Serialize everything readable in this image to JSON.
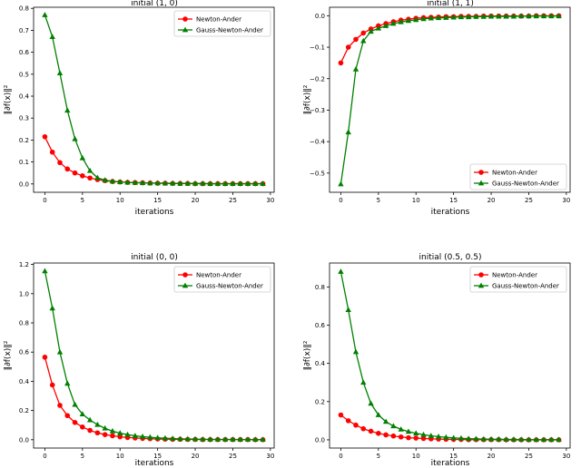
{
  "chart_data": [
    {
      "type": "line",
      "title": "initial (1, 0)",
      "xlabel": "iterations",
      "ylabel": "‖∂f(x)‖²",
      "xlim": [
        -1.5,
        30.5
      ],
      "ylim": [
        -0.038,
        0.805
      ],
      "xticks": [
        0,
        5,
        10,
        15,
        20,
        25,
        30
      ],
      "xtick_labels": [
        "0",
        "5",
        "10",
        "15",
        "20",
        "25",
        "30"
      ],
      "yticks": [
        0.0,
        0.1,
        0.2,
        0.3,
        0.4,
        0.5,
        0.6,
        0.7,
        0.8
      ],
      "ytick_labels": [
        "0.0",
        "0.1",
        "0.2",
        "0.3",
        "0.4",
        "0.5",
        "0.6",
        "0.7",
        "0.8"
      ],
      "legend": "top-right",
      "series": [
        {
          "name": "Newton-Ander",
          "color": "#ff0000",
          "marker": "circle",
          "x": [
            0,
            1,
            2,
            3,
            4,
            5,
            6,
            7,
            8,
            9,
            10,
            11,
            12,
            13,
            14,
            15,
            16,
            17,
            18,
            19,
            20,
            21,
            22,
            23,
            24,
            25,
            26,
            27,
            28,
            29
          ],
          "values": [
            0.215,
            0.145,
            0.097,
            0.068,
            0.05,
            0.037,
            0.027,
            0.02,
            0.015,
            0.011,
            0.009,
            0.007,
            0.006,
            0.005,
            0.004,
            0.003,
            0.003,
            0.002,
            0.002,
            0.002,
            0.001,
            0.001,
            0.001,
            0.001,
            0.001,
            0.001,
            0.001,
            0.001,
            0.001,
            0.001
          ]
        },
        {
          "name": "Gauss-Newton-Ander",
          "color": "#008000",
          "marker": "triangle",
          "x": [
            0,
            1,
            2,
            3,
            4,
            5,
            6,
            7,
            8,
            9,
            10,
            11,
            12,
            13,
            14,
            15,
            16,
            17,
            18,
            19,
            20,
            21,
            22,
            23,
            24,
            25,
            26,
            27,
            28,
            29
          ],
          "values": [
            0.77,
            0.67,
            0.505,
            0.335,
            0.205,
            0.118,
            0.06,
            0.028,
            0.017,
            0.012,
            0.009,
            0.007,
            0.006,
            0.005,
            0.004,
            0.004,
            0.003,
            0.003,
            0.002,
            0.002,
            0.002,
            0.002,
            0.001,
            0.001,
            0.001,
            0.001,
            0.001,
            0.001,
            0.001,
            0.001
          ]
        }
      ]
    },
    {
      "type": "line",
      "title": "initial (1, 1)",
      "xlabel": "iterations",
      "ylabel": "‖∂f(x)‖²",
      "xlim": [
        -1.5,
        30.5
      ],
      "ylim": [
        -0.561,
        0.027
      ],
      "xticks": [
        0,
        5,
        10,
        15,
        20,
        25,
        30
      ],
      "xtick_labels": [
        "0",
        "5",
        "10",
        "15",
        "20",
        "25",
        "30"
      ],
      "yticks": [
        0.0,
        -0.1,
        -0.2,
        -0.3,
        -0.4,
        -0.5
      ],
      "ytick_labels": [
        "0.0",
        "−0.1",
        "−0.2",
        "−0.3",
        "−0.4",
        "−0.5"
      ],
      "legend": "bottom-right",
      "series": [
        {
          "name": "Newton-Ander",
          "color": "#ff0000",
          "marker": "circle",
          "x": [
            0,
            1,
            2,
            3,
            4,
            5,
            6,
            7,
            8,
            9,
            10,
            11,
            12,
            13,
            14,
            15,
            16,
            17,
            18,
            19,
            20,
            21,
            22,
            23,
            24,
            25,
            26,
            27,
            28,
            29
          ],
          "values": [
            -0.15,
            -0.1,
            -0.075,
            -0.055,
            -0.042,
            -0.032,
            -0.025,
            -0.019,
            -0.014,
            -0.011,
            -0.008,
            -0.006,
            -0.005,
            -0.004,
            -0.003,
            -0.003,
            -0.002,
            -0.002,
            -0.002,
            -0.001,
            -0.001,
            -0.001,
            -0.001,
            -0.001,
            -0.001,
            -0.001,
            0.0,
            0.0,
            0.0,
            0.0
          ]
        },
        {
          "name": "Gauss-Newton-Ander",
          "color": "#008000",
          "marker": "triangle",
          "x": [
            0,
            1,
            2,
            3,
            4,
            5,
            6,
            7,
            8,
            9,
            10,
            11,
            12,
            13,
            14,
            15,
            16,
            17,
            18,
            19,
            20,
            21,
            22,
            23,
            24,
            25,
            26,
            27,
            28,
            29
          ],
          "values": [
            -0.535,
            -0.37,
            -0.17,
            -0.08,
            -0.05,
            -0.04,
            -0.032,
            -0.025,
            -0.02,
            -0.016,
            -0.013,
            -0.01,
            -0.008,
            -0.007,
            -0.006,
            -0.005,
            -0.004,
            -0.004,
            -0.003,
            -0.003,
            -0.002,
            -0.002,
            -0.002,
            -0.002,
            -0.001,
            -0.001,
            -0.001,
            -0.001,
            -0.001,
            -0.001
          ]
        }
      ]
    },
    {
      "type": "line",
      "title": "initial (0, 0)",
      "xlabel": "iterations",
      "ylabel": "‖∂f(x)‖²",
      "xlim": [
        -1.5,
        30.5
      ],
      "ylim": [
        -0.057,
        1.21
      ],
      "xticks": [
        0,
        5,
        10,
        15,
        20,
        25,
        30
      ],
      "xtick_labels": [
        "0",
        "5",
        "10",
        "15",
        "20",
        "25",
        "30"
      ],
      "yticks": [
        0.0,
        0.2,
        0.4,
        0.6,
        0.8,
        1.0,
        1.2
      ],
      "ytick_labels": [
        "0.0",
        "0.2",
        "0.4",
        "0.6",
        "0.8",
        "1.0",
        "1.2"
      ],
      "legend": "top-right",
      "series": [
        {
          "name": "Newton-Ander",
          "color": "#ff0000",
          "marker": "circle",
          "x": [
            0,
            1,
            2,
            3,
            4,
            5,
            6,
            7,
            8,
            9,
            10,
            11,
            12,
            13,
            14,
            15,
            16,
            17,
            18,
            19,
            20,
            21,
            22,
            23,
            24,
            25,
            26,
            27,
            28,
            29
          ],
          "values": [
            0.565,
            0.375,
            0.235,
            0.165,
            0.118,
            0.087,
            0.064,
            0.047,
            0.035,
            0.027,
            0.02,
            0.015,
            0.012,
            0.009,
            0.007,
            0.005,
            0.004,
            0.003,
            0.003,
            0.002,
            0.002,
            0.001,
            0.001,
            0.001,
            0.001,
            0.001,
            0.001,
            0.001,
            0.0,
            0.0
          ]
        },
        {
          "name": "Gauss-Newton-Ander",
          "color": "#008000",
          "marker": "triangle",
          "x": [
            0,
            1,
            2,
            3,
            4,
            5,
            6,
            7,
            8,
            9,
            10,
            11,
            12,
            13,
            14,
            15,
            16,
            17,
            18,
            19,
            20,
            21,
            22,
            23,
            24,
            25,
            26,
            27,
            28,
            29
          ],
          "values": [
            1.155,
            0.9,
            0.6,
            0.385,
            0.24,
            0.175,
            0.135,
            0.103,
            0.078,
            0.059,
            0.045,
            0.035,
            0.027,
            0.021,
            0.017,
            0.013,
            0.01,
            0.008,
            0.006,
            0.005,
            0.004,
            0.003,
            0.003,
            0.002,
            0.002,
            0.002,
            0.001,
            0.001,
            0.001,
            0.001
          ]
        }
      ]
    },
    {
      "type": "line",
      "title": "initial (0.5, 0.5)",
      "xlabel": "iterations",
      "ylabel": "‖∂f(x)‖²",
      "xlim": [
        -1.5,
        30.5
      ],
      "ylim": [
        -0.043,
        0.925
      ],
      "xticks": [
        0,
        5,
        10,
        15,
        20,
        25,
        30
      ],
      "xtick_labels": [
        "0",
        "5",
        "10",
        "15",
        "20",
        "25",
        "30"
      ],
      "yticks": [
        0.0,
        0.2,
        0.4,
        0.6,
        0.8
      ],
      "ytick_labels": [
        "0.0",
        "0.2",
        "0.4",
        "0.6",
        "0.8"
      ],
      "legend": "top-right",
      "series": [
        {
          "name": "Newton-Ander",
          "color": "#ff0000",
          "marker": "circle",
          "x": [
            0,
            1,
            2,
            3,
            4,
            5,
            6,
            7,
            8,
            9,
            10,
            11,
            12,
            13,
            14,
            15,
            16,
            17,
            18,
            19,
            20,
            21,
            22,
            23,
            24,
            25,
            26,
            27,
            28,
            29
          ],
          "values": [
            0.13,
            0.1,
            0.077,
            0.058,
            0.045,
            0.034,
            0.026,
            0.02,
            0.015,
            0.011,
            0.009,
            0.007,
            0.005,
            0.004,
            0.003,
            0.002,
            0.002,
            0.001,
            0.001,
            0.001,
            0.001,
            0.001,
            0.0,
            0.0,
            0.0,
            0.0,
            0.0,
            0.0,
            0.0,
            0.0
          ]
        },
        {
          "name": "Gauss-Newton-Ander",
          "color": "#008000",
          "marker": "triangle",
          "x": [
            0,
            1,
            2,
            3,
            4,
            5,
            6,
            7,
            8,
            9,
            10,
            11,
            12,
            13,
            14,
            15,
            16,
            17,
            18,
            19,
            20,
            21,
            22,
            23,
            24,
            25,
            26,
            27,
            28,
            29
          ],
          "values": [
            0.88,
            0.68,
            0.46,
            0.3,
            0.19,
            0.13,
            0.095,
            0.072,
            0.055,
            0.043,
            0.034,
            0.027,
            0.021,
            0.017,
            0.013,
            0.01,
            0.008,
            0.006,
            0.005,
            0.004,
            0.003,
            0.003,
            0.002,
            0.002,
            0.002,
            0.001,
            0.001,
            0.001,
            0.001,
            0.001
          ]
        }
      ]
    }
  ]
}
